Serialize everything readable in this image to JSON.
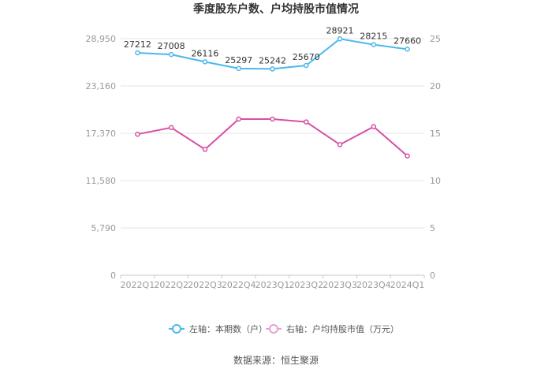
{
  "chart_data": {
    "type": "line",
    "title": "季度股东户数、户均持股市值情况",
    "categories": [
      "2022Q1",
      "2022Q2",
      "2022Q3",
      "2022Q4",
      "2023Q1",
      "2023Q2",
      "2023Q3",
      "2023Q4",
      "2024Q1"
    ],
    "left_axis": {
      "ticks": [
        "0",
        "5,790",
        "11,580",
        "17,370",
        "23,160",
        "28,950"
      ],
      "ylim": [
        0,
        28950
      ]
    },
    "right_axis": {
      "ticks": [
        "0",
        "5",
        "10",
        "15",
        "20",
        "25"
      ],
      "ylim": [
        0,
        25
      ]
    },
    "series": [
      {
        "name": "左轴：本期数（户）",
        "axis": "left",
        "color": "#4bb8ec",
        "values": [
          27212,
          27008,
          26116,
          25297,
          25242,
          25670,
          28921,
          28215,
          27660
        ],
        "labels": [
          "27212",
          "27008",
          "26116",
          "25297",
          "25242",
          "25670",
          "28921",
          "28215",
          "27660"
        ]
      },
      {
        "name": "右轴：户均持股市值（万元）",
        "axis": "right",
        "color": "#d64fa3",
        "values": [
          14.9,
          15.6,
          13.3,
          16.5,
          16.5,
          16.2,
          13.8,
          15.7,
          12.6
        ]
      }
    ],
    "grid": true,
    "legend_position": "bottom"
  },
  "source": "数据来源：恒生聚源"
}
